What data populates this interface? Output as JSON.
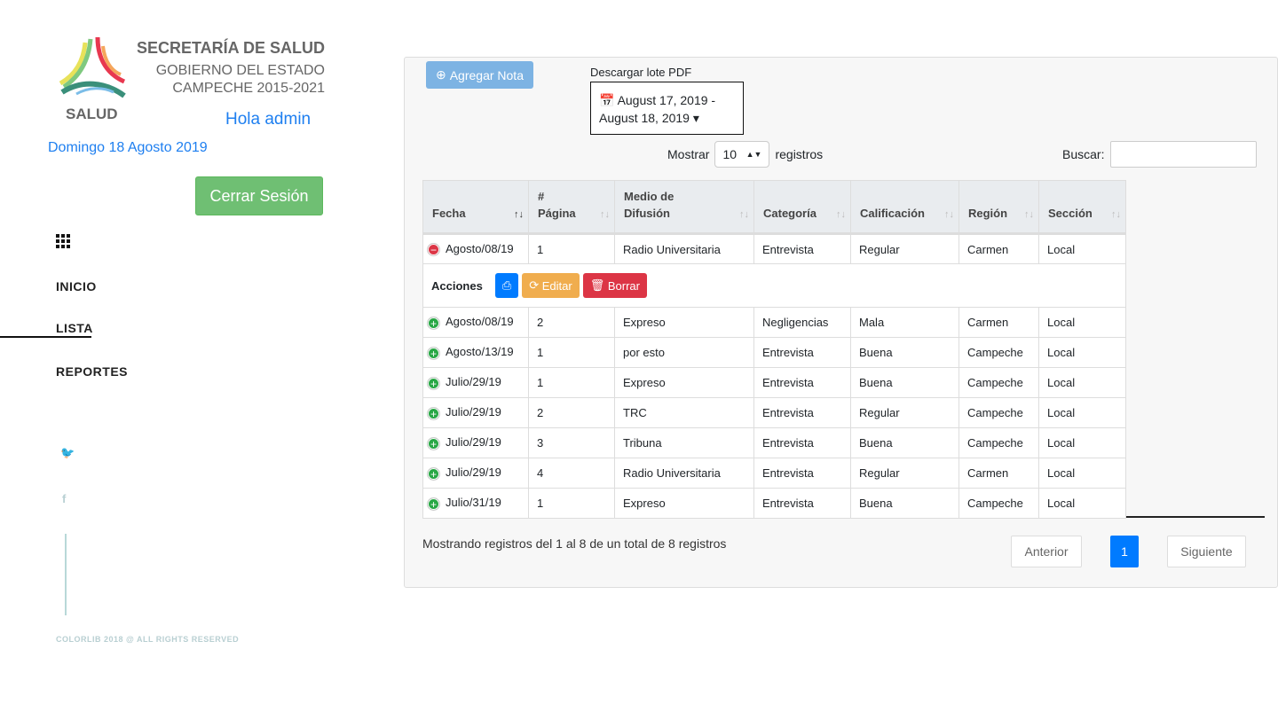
{
  "header": {
    "org_title": "SECRETARÍA DE SALUD",
    "org_sub1": "GOBIERNO DEL ESTADO",
    "org_sub2": "CAMPECHE 2015-2021",
    "logo_text": "SALUD",
    "greeting": "Hola admin",
    "date": "Domingo 18 Agosto 2019",
    "logout": "Cerrar Sesión"
  },
  "sidebar": {
    "items": [
      {
        "label": "INICIO"
      },
      {
        "label": "LISTA"
      },
      {
        "label": "REPORTES"
      }
    ],
    "social": [
      "twitter-icon",
      "facebook-icon"
    ],
    "copyright": "COLORLIB 2018 @ ALL RIGHTS RESERVED"
  },
  "toolbar": {
    "add_note": "Agregar Nota",
    "pdf_label": "Descargar lote PDF",
    "date_range_1": "August 17, 2019 -",
    "date_range_2": "August 18, 2019",
    "show_label": "Mostrar",
    "show_value": "10",
    "records_label": "registros",
    "search_label": "Buscar:",
    "search_value": ""
  },
  "table": {
    "headers": [
      [
        "",
        "Fecha"
      ],
      [
        "#",
        "Página"
      ],
      [
        "Medio de",
        "Difusión"
      ],
      [
        "",
        "Categoría"
      ],
      [
        "",
        "Calificación"
      ],
      [
        "",
        "Región"
      ],
      [
        "",
        "Sección"
      ]
    ],
    "rows": [
      [
        "Agosto/08/19",
        "1",
        "Radio Universitaria",
        "Entrevista",
        "Regular",
        "Carmen",
        "Local"
      ],
      [
        "Agosto/08/19",
        "2",
        "Expreso",
        "Negligencias",
        "Mala",
        "Carmen",
        "Local"
      ],
      [
        "Agosto/13/19",
        "1",
        "por esto",
        "Entrevista",
        "Buena",
        "Campeche",
        "Local"
      ],
      [
        "Julio/29/19",
        "1",
        "Expreso",
        "Entrevista",
        "Buena",
        "Campeche",
        "Local"
      ],
      [
        "Julio/29/19",
        "2",
        "TRC",
        "Entrevista",
        "Regular",
        "Campeche",
        "Local"
      ],
      [
        "Julio/29/19",
        "3",
        "Tribuna",
        "Entrevista",
        "Buena",
        "Campeche",
        "Local"
      ],
      [
        "Julio/29/19",
        "4",
        "Radio Universitaria",
        "Entrevista",
        "Regular",
        "Carmen",
        "Local"
      ],
      [
        "Julio/31/19",
        "1",
        "Expreso",
        "Entrevista",
        "Buena",
        "Campeche",
        "Local"
      ]
    ],
    "actions": {
      "label": "Acciones",
      "edit": "Editar",
      "delete": "Borrar"
    }
  },
  "footer": {
    "info": "Mostrando registros del 1 al 8 de un total de 8 registros",
    "prev": "Anterior",
    "page": "1",
    "next": "Siguiente"
  },
  "colors": {
    "primary": "#007bff",
    "success": "#6fbf73",
    "warning": "#f0ad4e",
    "danger": "#dc3545"
  }
}
